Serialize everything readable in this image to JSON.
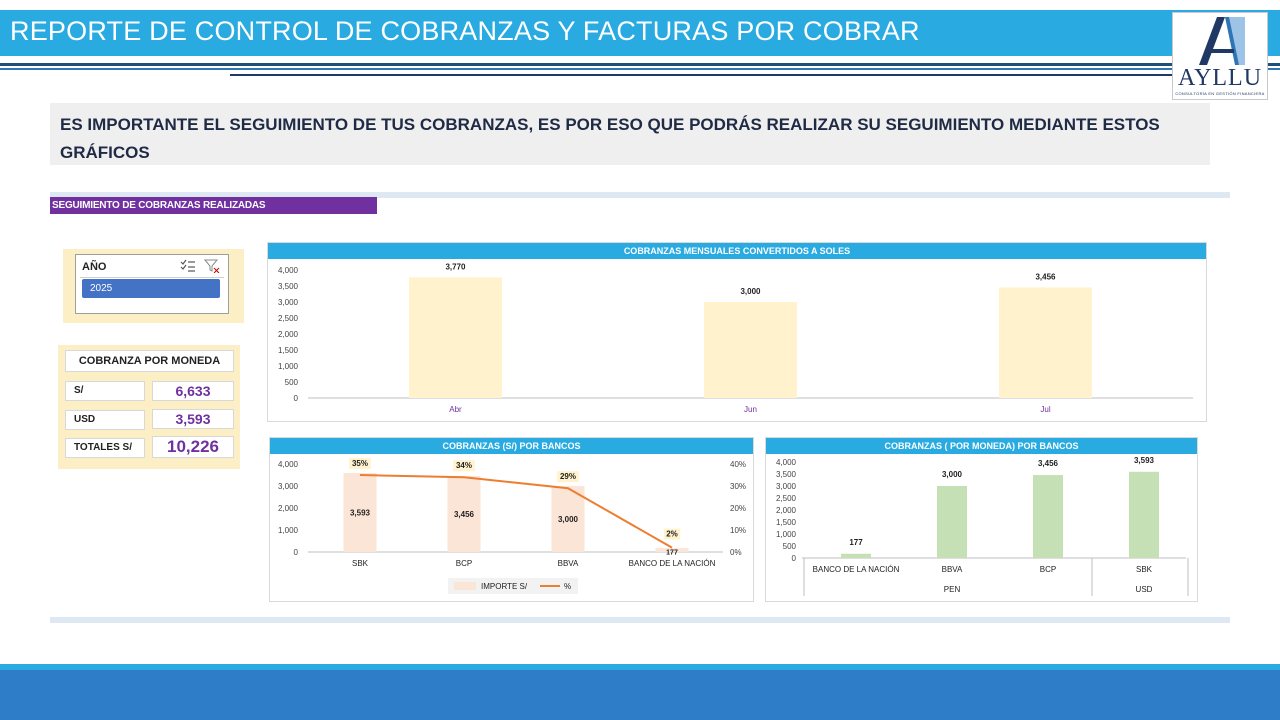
{
  "header": {
    "title": "REPORTE DE CONTROL DE COBRANZAS Y FACTURAS POR COBRAR"
  },
  "logo": {
    "text": "AYLLU",
    "subtitle": "CONSULTORÍA EN GESTIÓN FINANCIERA"
  },
  "intro": {
    "text": "ES IMPORTANTE EL SEGUIMIENTO DE TUS COBRANZAS, ES POR ESO QUE PODRÁS REALIZAR SU SEGUIMIENTO MEDIANTE ESTOS GRÁFICOS"
  },
  "section": {
    "label": "SEGUIMIENTO DE COBRANZAS REALIZADAS"
  },
  "slicer": {
    "header": "AÑO",
    "items": [
      "2025"
    ],
    "icons": [
      "multi-select-icon",
      "clear-filter-icon"
    ]
  },
  "currency_summary": {
    "title": "COBRANZA POR MONEDA",
    "rows": [
      {
        "label": "S/",
        "value": "6,633"
      },
      {
        "label": "USD",
        "value": "3,593"
      },
      {
        "label": "TOTALES S/",
        "value": "10,226"
      }
    ]
  },
  "colors": {
    "header": "#29abe2",
    "accent_purple": "#7030a0",
    "bar_cream": "#fff2cc",
    "bar_peach": "#fbe5d6",
    "bar_green": "#c5e0b4",
    "line_orange": "#ed7d31",
    "footer": "#2e7dc8"
  },
  "chart_data": [
    {
      "type": "bar",
      "title": "COBRANZAS MENSUALES CONVERTIDOS A SOLES",
      "categories": [
        "Abr",
        "Jun",
        "Jul"
      ],
      "values": [
        3770,
        3000,
        3456
      ],
      "labels": [
        "3,770",
        "3,000",
        "3,456"
      ],
      "yticks": [
        "4,000",
        "3,500",
        "3,000",
        "2,500",
        "2,000",
        "1,500",
        "1,000",
        "500",
        "0"
      ],
      "ylim": [
        0,
        4000
      ]
    },
    {
      "type": "bar",
      "title": "COBRANZAS (S/) POR BANCOS",
      "categories": [
        "SBK",
        "BCP",
        "BBVA",
        "BANCO DE LA NACIÓN"
      ],
      "series": [
        {
          "name": "IMPORTE S/",
          "type": "bar",
          "values": [
            3593,
            3456,
            3000,
            177
          ],
          "labels": [
            "3,593",
            "3,456",
            "3,000",
            "177"
          ]
        },
        {
          "name": "%",
          "type": "line",
          "values": [
            0.35,
            0.34,
            0.29,
            0.02
          ],
          "labels": [
            "35%",
            "34%",
            "29%",
            "2%"
          ]
        }
      ],
      "yticks": [
        "4,000",
        "3,000",
        "2,000",
        "1,000",
        "0"
      ],
      "y2ticks": [
        "40%",
        "30%",
        "20%",
        "10%",
        "0%"
      ],
      "ylim": [
        0,
        4000
      ],
      "y2lim": [
        0,
        0.4
      ],
      "legend": [
        "IMPORTE S/",
        "%"
      ]
    },
    {
      "type": "bar",
      "title": "COBRANZAS ( POR MONEDA) POR BANCOS",
      "categories": [
        "BANCO DE LA NACIÓN",
        "BBVA",
        "BCP",
        "SBK"
      ],
      "groups": [
        {
          "name": "PEN",
          "span": 3
        },
        {
          "name": "USD",
          "span": 1
        }
      ],
      "values": [
        177,
        3000,
        3456,
        3593
      ],
      "labels": [
        "177",
        "3,000",
        "3,456",
        "3,593"
      ],
      "yticks": [
        "4,000",
        "3,500",
        "3,000",
        "2,500",
        "2,000",
        "1,500",
        "1,000",
        "500",
        "0"
      ],
      "ylim": [
        0,
        4000
      ]
    }
  ]
}
